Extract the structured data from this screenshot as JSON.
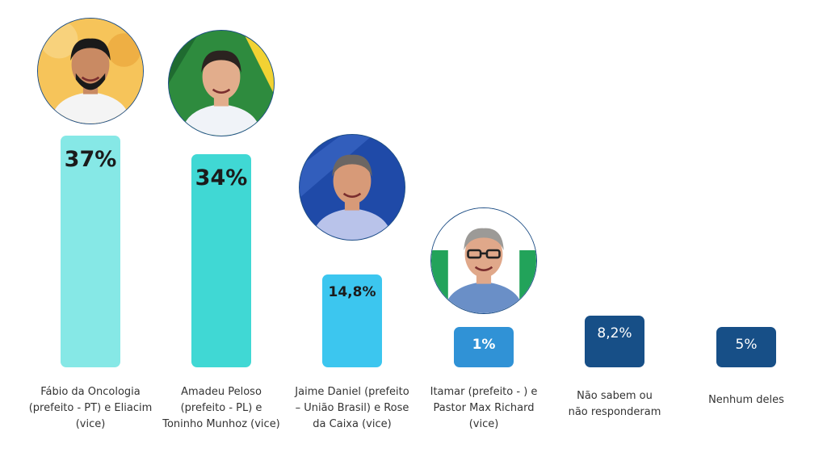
{
  "chart_data": {
    "type": "bar",
    "title": "",
    "xlabel": "",
    "ylabel": "",
    "ylim": [
      0,
      40
    ],
    "categories": [
      "Fábio da Oncologia\n(prefeito - PT) e Eliacim\n(vice)",
      "Amadeu Peloso\n(prefeito - PL) e\nToninho Munhoz (vice)",
      "Jaime Daniel (prefeito\n– União Brasil)  e Rose\nda Caixa (vice)",
      "Itamar (prefeito - ) e\nPastor Max Richard\n(vice)",
      "Não sabem ou\nnão responderam",
      "Nenhum deles"
    ],
    "values": [
      37,
      34,
      14.8,
      1,
      8.2,
      5
    ],
    "value_labels": [
      "37%",
      "34%",
      "14,8%",
      "1%",
      "8,2%",
      "5%"
    ],
    "colors": [
      "#86e8e6",
      "#40d8d4",
      "#3cc6ef",
      "#3092d6",
      "#174f87",
      "#174f87"
    ],
    "label_colors": [
      "#1b1b1b",
      "#1b1b1b",
      "#1b1b1b",
      "#ffffff",
      "#ffffff",
      "#ffffff"
    ],
    "candidate_photos": [
      {
        "icon": "candidate-photo-fabio",
        "bg": "#f2b63e"
      },
      {
        "icon": "candidate-photo-amadeu",
        "bg": "#2e8b3e"
      },
      {
        "icon": "candidate-photo-jaime",
        "bg": "#1f4aa8"
      },
      {
        "icon": "candidate-photo-itamar",
        "bg": "#ffffff"
      }
    ]
  }
}
